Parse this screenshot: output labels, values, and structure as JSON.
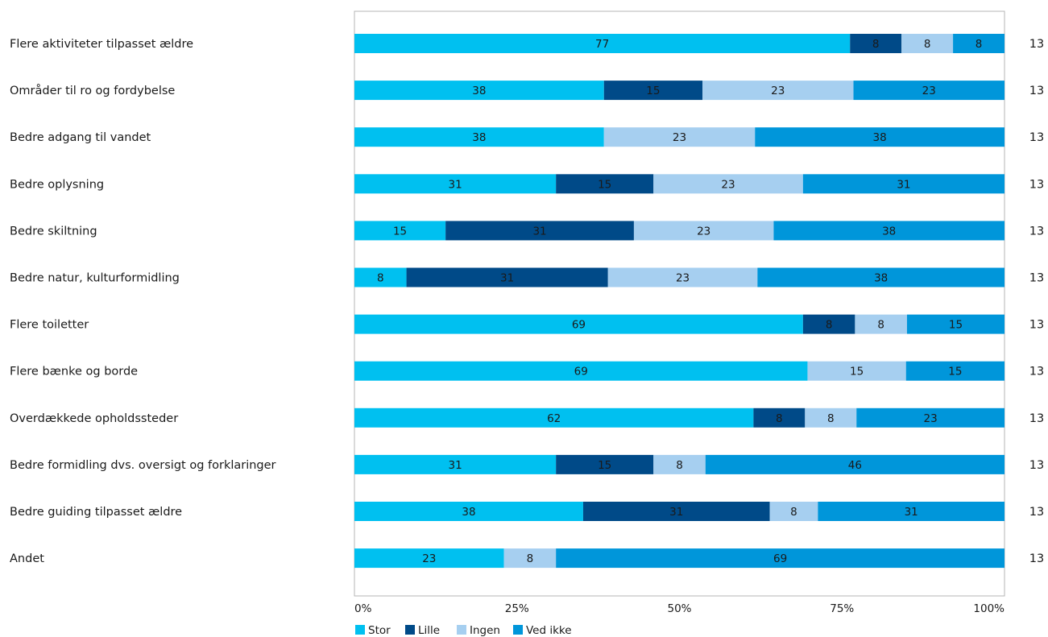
{
  "chart_data": {
    "type": "bar",
    "orientation": "horizontal",
    "stacked": "percent",
    "categories": [
      "Flere aktiviteter tilpasset ældre",
      "Områder til ro og fordybelse",
      "Bedre adgang til vandet",
      "Bedre oplysning",
      "Bedre skiltning",
      "Bedre natur, kulturformidling",
      "Flere toiletter",
      "Flere bænke og borde",
      "Overdækkede opholdssteder",
      "Bedre formidling dvs. oversigt og forklaringer",
      "Bedre guiding tilpasset ældre",
      "Andet"
    ],
    "series": [
      {
        "name": "Stor",
        "color": "#00c0f0",
        "values": [
          77,
          38,
          38,
          31,
          15,
          8,
          69,
          69,
          62,
          31,
          38,
          23
        ],
        "labels": [
          "77",
          "38",
          "38",
          "31",
          "15",
          "8",
          "69",
          "69",
          "62",
          "31",
          "38",
          "23"
        ]
      },
      {
        "name": "Lille",
        "color": "#004a88",
        "values": [
          8,
          15,
          0,
          15,
          31,
          31,
          8,
          0,
          8,
          15,
          31,
          0
        ],
        "labels": [
          "8",
          "15",
          "",
          "15",
          "31",
          "31",
          "8",
          "",
          "8",
          "15",
          "31",
          ""
        ]
      },
      {
        "name": "Ingen",
        "color": "#a6cff0",
        "values": [
          8,
          23,
          23,
          23,
          23,
          23,
          8,
          15,
          8,
          8,
          8,
          8
        ],
        "labels": [
          "8",
          "23",
          "23",
          "23",
          "23",
          "23",
          "8",
          "15",
          "8",
          "8",
          "8",
          "8"
        ]
      },
      {
        "name": "Ved ikke",
        "color": "#0096da",
        "values": [
          8,
          23,
          38,
          31,
          38,
          38,
          15,
          15,
          23,
          46,
          31,
          69
        ],
        "labels": [
          "8",
          "23",
          "38",
          "31",
          "38",
          "38",
          "15",
          "15",
          "23",
          "46",
          "31",
          "69"
        ]
      }
    ],
    "n": [
      "13",
      "13",
      "13",
      "13",
      "13",
      "13",
      "13",
      "13",
      "13",
      "13",
      "13",
      "13"
    ],
    "x_ticks": [
      "0%",
      "25%",
      "50%",
      "75%",
      "100%"
    ],
    "xlim": [
      0,
      100
    ],
    "legend_position": "bottom",
    "grid": false
  }
}
